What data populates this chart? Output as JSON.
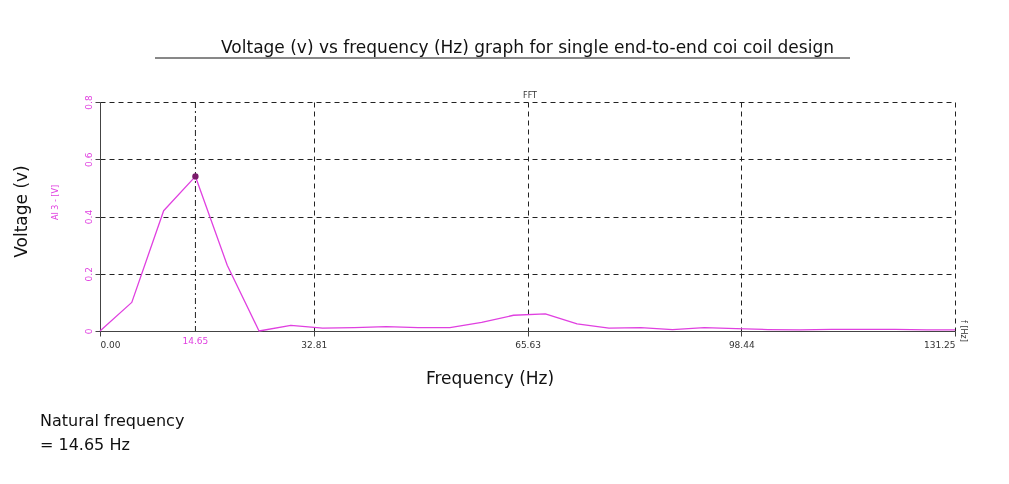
{
  "chart_data": {
    "type": "line",
    "title": "Voltage (v) vs frequency (Hz) graph for single end-to-end coi coil design",
    "xlabel": "Frequency (Hz)",
    "ylabel": "Voltage (v)",
    "x": [
      0,
      4.88,
      9.77,
      14.65,
      19.53,
      24.41,
      29.3,
      34.18,
      39.06,
      43.95,
      48.83,
      53.71,
      58.59,
      63.48,
      68.36,
      73.24,
      78.13,
      83.01,
      87.89,
      92.77,
      97.66,
      102.54,
      107.42,
      112.3,
      117.19,
      122.07,
      126.95,
      131.25
    ],
    "series": [
      {
        "color": "#e040e0",
        "values": [
          0,
          0.1,
          0.42,
          0.54,
          0.23,
          0.0,
          0.02,
          0.01,
          0.012,
          0.015,
          0.012,
          0.012,
          0.03,
          0.055,
          0.06,
          0.025,
          0.01,
          0.012,
          0.005,
          0.012,
          0.008,
          0.005,
          0.004,
          0.006,
          0.006,
          0.006,
          0.004,
          0.004
        ]
      },
      {
        "type": "scatter",
        "color": "#7a1a6a",
        "x": [
          14.65
        ],
        "values": [
          0.54
        ],
        "marker": "circle"
      }
    ],
    "xlim": [
      0,
      131.25
    ],
    "xticks": [
      {
        "value": 0,
        "label": "0.00"
      },
      32.81,
      65.63,
      98.44,
      131.25
    ],
    "ylim": [
      0,
      0.8
    ],
    "yticks": [
      0,
      0.2,
      0.4,
      0.6,
      0.8
    ],
    "grid": true,
    "ref_lines": [
      {
        "axis": "x",
        "value": 14.65,
        "label": "14.65",
        "color": "#222222",
        "line_style": "dashed"
      }
    ],
    "annotations": [
      "FFT",
      "AI 3 - [V]",
      "f [Hz]",
      "Natural frequency\n= 14.65 Hz"
    ]
  }
}
